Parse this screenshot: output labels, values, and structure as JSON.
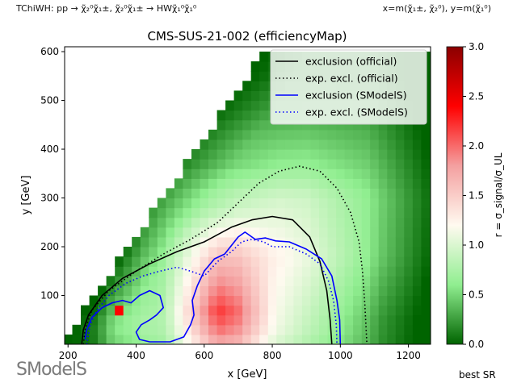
{
  "header": {
    "process_label": "TChiWH:",
    "process_formula": "pp → χ̃₂⁰χ̃₁±, χ̃₂⁰χ̃₁± → HWχ̃₁⁰χ̃₁⁰",
    "axes_def": "x=m(χ̃₁±, χ̃₂⁰), y=m(χ̃₁⁰)"
  },
  "logo": {
    "text": "SModelS"
  },
  "footer": {
    "best_sr": "best SR"
  },
  "chart_data": {
    "type": "heatmap",
    "title": "CMS-SUS-21-002 (efficiencyMap)",
    "xlabel": "x [GeV]",
    "ylabel": "y [GeV]",
    "xlim": [
      190,
      1265
    ],
    "ylim": [
      0,
      610
    ],
    "xticks": [
      200,
      400,
      600,
      800,
      1000,
      1200
    ],
    "yticks": [
      100,
      200,
      300,
      400,
      500,
      600
    ],
    "grid": false,
    "colorbar": {
      "label": "r = σ_signal/σ_UL",
      "range": [
        0.0,
        3.0
      ],
      "ticks": [
        0.0,
        0.5,
        1.0,
        1.5,
        2.0,
        2.5,
        3.0
      ],
      "colors": [
        "#006400",
        "#90ee90",
        "#fffaf0",
        "#f4a0a0",
        "#ff0000",
        "#8b0000"
      ]
    },
    "legend": {
      "placement": "upper right",
      "entries": [
        {
          "label": "exclusion (official)",
          "color": "#000000",
          "style": "solid"
        },
        {
          "label": "exp. excl. (official)",
          "color": "#000000",
          "style": "dotted"
        },
        {
          "label": "exclusion (SModelS)",
          "color": "#0000ff",
          "style": "solid"
        },
        {
          "label": "exp. excl. (SModelS)",
          "color": "#0000ff",
          "style": "dotted"
        }
      ]
    },
    "curves": {
      "exclusion_official": [
        [
          240,
          0
        ],
        [
          245,
          30
        ],
        [
          260,
          60
        ],
        [
          300,
          100
        ],
        [
          360,
          135
        ],
        [
          440,
          165
        ],
        [
          520,
          190
        ],
        [
          600,
          210
        ],
        [
          680,
          240
        ],
        [
          740,
          255
        ],
        [
          800,
          262
        ],
        [
          860,
          255
        ],
        [
          910,
          220
        ],
        [
          940,
          170
        ],
        [
          960,
          110
        ],
        [
          970,
          50
        ],
        [
          975,
          0
        ]
      ],
      "exp_excl_official": [
        [
          245,
          0
        ],
        [
          250,
          30
        ],
        [
          270,
          70
        ],
        [
          320,
          110
        ],
        [
          400,
          150
        ],
        [
          480,
          185
        ],
        [
          560,
          215
        ],
        [
          640,
          250
        ],
        [
          700,
          290
        ],
        [
          760,
          330
        ],
        [
          820,
          355
        ],
        [
          880,
          365
        ],
        [
          940,
          355
        ],
        [
          990,
          320
        ],
        [
          1030,
          270
        ],
        [
          1055,
          210
        ],
        [
          1065,
          150
        ],
        [
          1072,
          80
        ],
        [
          1078,
          0
        ]
      ],
      "exclusion_smodels": [
        [
          250,
          10
        ],
        [
          255,
          30
        ],
        [
          270,
          55
        ],
        [
          300,
          75
        ],
        [
          330,
          85
        ],
        [
          360,
          90
        ],
        [
          385,
          85
        ],
        [
          410,
          100
        ],
        [
          440,
          110
        ],
        [
          470,
          100
        ],
        [
          480,
          75
        ],
        [
          460,
          60
        ],
        [
          440,
          50
        ],
        [
          415,
          40
        ],
        [
          400,
          25
        ],
        [
          410,
          10
        ],
        [
          440,
          5
        ],
        [
          500,
          5
        ],
        [
          540,
          15
        ],
        [
          560,
          40
        ],
        [
          570,
          60
        ],
        [
          565,
          90
        ],
        [
          580,
          120
        ],
        [
          600,
          150
        ],
        [
          630,
          175
        ],
        [
          660,
          185
        ],
        [
          700,
          220
        ],
        [
          720,
          230
        ],
        [
          750,
          215
        ],
        [
          780,
          218
        ],
        [
          810,
          212
        ],
        [
          850,
          210
        ],
        [
          900,
          195
        ],
        [
          945,
          175
        ],
        [
          975,
          140
        ],
        [
          990,
          90
        ],
        [
          998,
          50
        ],
        [
          1000,
          0
        ]
      ],
      "exp_excl_smodels": [
        [
          255,
          0
        ],
        [
          265,
          40
        ],
        [
          285,
          70
        ],
        [
          320,
          100
        ],
        [
          370,
          125
        ],
        [
          420,
          140
        ],
        [
          470,
          150
        ],
        [
          520,
          158
        ],
        [
          560,
          150
        ],
        [
          600,
          140
        ],
        [
          640,
          170
        ],
        [
          680,
          190
        ],
        [
          710,
          210
        ],
        [
          740,
          215
        ],
        [
          775,
          210
        ],
        [
          800,
          200
        ],
        [
          850,
          200
        ],
        [
          900,
          185
        ],
        [
          940,
          165
        ],
        [
          965,
          130
        ],
        [
          980,
          90
        ],
        [
          988,
          40
        ],
        [
          990,
          0
        ]
      ]
    }
  }
}
